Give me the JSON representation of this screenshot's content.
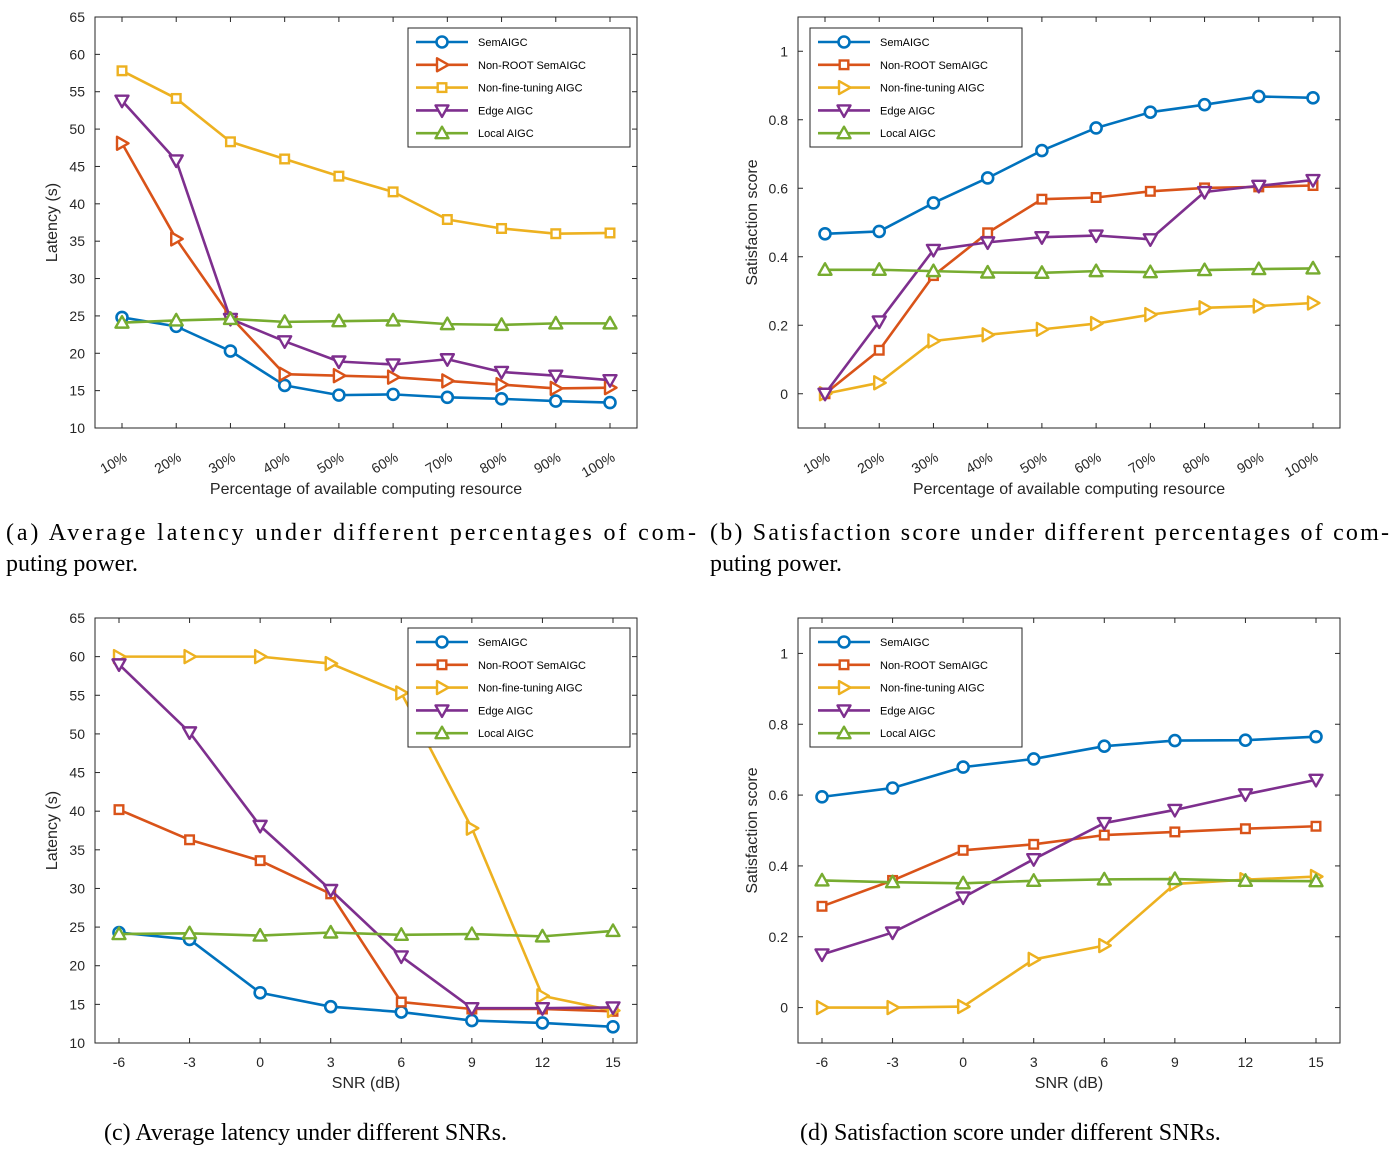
{
  "figure": {
    "captions": [
      {
        "lines": [
          "(a) Average latency under different percentages of com-",
          "puting power."
        ]
      },
      {
        "lines": [
          "(b) Satisfaction score under different percentages of com-",
          "puting power."
        ]
      },
      {
        "lines": [
          "(c) Average latency under different SNRs."
        ]
      },
      {
        "lines": [
          "(d) Satisfaction score under different SNRs."
        ]
      }
    ]
  },
  "colors": {
    "SemAIGC": "#0072BD",
    "Non-ROOT SemAIGC": "#D95319",
    "Non-fine-tuning AIGC": "#EDB120",
    "Edge AIGC": "#7E2F8E",
    "Local AIGC": "#77AC30"
  },
  "chart_data": [
    {
      "type": "line",
      "title": "",
      "xlabel": "Percentage of available computing resource",
      "ylabel": "Latency (s)",
      "categories": [
        "10%",
        "20%",
        "30%",
        "40%",
        "50%",
        "60%",
        "70%",
        "80%",
        "90%",
        "100%"
      ],
      "ylim": [
        10,
        65
      ],
      "yticks": [
        10,
        15,
        20,
        25,
        30,
        35,
        40,
        45,
        50,
        55,
        60,
        65
      ],
      "grid": false,
      "legend_position": "top-right",
      "series": [
        {
          "name": "SemAIGC",
          "marker": "circle",
          "values": [
            24.8,
            23.6,
            20.3,
            15.7,
            14.4,
            14.5,
            14.1,
            13.9,
            13.6,
            13.4
          ]
        },
        {
          "name": "Non-ROOT SemAIGC",
          "marker": "triangle-right",
          "values": [
            48.1,
            35.3,
            24.9,
            17.2,
            17.0,
            16.8,
            16.3,
            15.8,
            15.3,
            15.4
          ]
        },
        {
          "name": "Non-fine-tuning AIGC",
          "marker": "square",
          "values": [
            57.8,
            54.1,
            48.3,
            46.0,
            43.7,
            41.6,
            37.9,
            36.7,
            36.0,
            36.1
          ]
        },
        {
          "name": "Edge AIGC",
          "marker": "triangle-down",
          "values": [
            53.8,
            45.8,
            24.6,
            21.6,
            18.9,
            18.5,
            19.2,
            17.5,
            17.0,
            16.4
          ]
        },
        {
          "name": "Local AIGC",
          "marker": "triangle-up",
          "values": [
            24.1,
            24.4,
            24.6,
            24.2,
            24.3,
            24.4,
            23.9,
            23.8,
            24.0,
            24.0
          ]
        }
      ]
    },
    {
      "type": "line",
      "title": "",
      "xlabel": "Percentage of available computing resource",
      "ylabel": "Satisfaction score",
      "categories": [
        "10%",
        "20%",
        "30%",
        "40%",
        "50%",
        "60%",
        "70%",
        "80%",
        "90%",
        "100%"
      ],
      "ylim": [
        -0.1,
        1.1
      ],
      "yticks": [
        0,
        0.2,
        0.4,
        0.6,
        0.8,
        1
      ],
      "grid": false,
      "legend_position": "top-left",
      "series": [
        {
          "name": "SemAIGC",
          "marker": "circle",
          "values": [
            0.467,
            0.474,
            0.557,
            0.63,
            0.71,
            0.776,
            0.822,
            0.844,
            0.868,
            0.864
          ]
        },
        {
          "name": "Non-ROOT SemAIGC",
          "marker": "square",
          "values": [
            0.0,
            0.127,
            0.345,
            0.47,
            0.568,
            0.573,
            0.591,
            0.601,
            0.604,
            0.608
          ]
        },
        {
          "name": "Non-fine-tuning AIGC",
          "marker": "triangle-right",
          "values": [
            0.0,
            0.032,
            0.154,
            0.172,
            0.188,
            0.205,
            0.231,
            0.251,
            0.256,
            0.265
          ]
        },
        {
          "name": "Edge AIGC",
          "marker": "triangle-down",
          "values": [
            0.0,
            0.211,
            0.42,
            0.442,
            0.457,
            0.462,
            0.451,
            0.589,
            0.607,
            0.624
          ]
        },
        {
          "name": "Local AIGC",
          "marker": "triangle-up",
          "values": [
            0.362,
            0.362,
            0.358,
            0.354,
            0.353,
            0.358,
            0.355,
            0.361,
            0.364,
            0.366
          ]
        }
      ]
    },
    {
      "type": "line",
      "title": "",
      "xlabel": "SNR (dB)",
      "ylabel": "Latency (s)",
      "categories": [
        "-6",
        "-3",
        "0",
        "3",
        "6",
        "9",
        "12",
        "15"
      ],
      "ylim": [
        10,
        65
      ],
      "yticks": [
        10,
        15,
        20,
        25,
        30,
        35,
        40,
        45,
        50,
        55,
        60,
        65
      ],
      "grid": false,
      "legend_position": "top-right",
      "series": [
        {
          "name": "SemAIGC",
          "marker": "circle",
          "values": [
            24.3,
            23.4,
            16.5,
            14.7,
            14.0,
            12.9,
            12.6,
            12.1
          ]
        },
        {
          "name": "Non-ROOT SemAIGC",
          "marker": "square",
          "values": [
            40.2,
            36.3,
            33.6,
            29.3,
            15.3,
            14.4,
            14.4,
            14.1
          ]
        },
        {
          "name": "Non-fine-tuning AIGC",
          "marker": "triangle-right",
          "values": [
            60.0,
            60.0,
            60.0,
            59.1,
            55.3,
            37.8,
            16.1,
            14.2
          ]
        },
        {
          "name": "Edge AIGC",
          "marker": "triangle-down",
          "values": [
            59.0,
            50.2,
            38.1,
            29.8,
            21.2,
            14.5,
            14.5,
            14.6
          ]
        },
        {
          "name": "Local AIGC",
          "marker": "triangle-up",
          "values": [
            24.1,
            24.2,
            23.9,
            24.3,
            24.0,
            24.1,
            23.8,
            24.5
          ]
        }
      ]
    },
    {
      "type": "line",
      "title": "",
      "xlabel": "SNR (dB)",
      "ylabel": "Satisfaction score",
      "categories": [
        "-6",
        "-3",
        "0",
        "3",
        "6",
        "9",
        "12",
        "15"
      ],
      "ylim": [
        -0.1,
        1.1
      ],
      "yticks": [
        0,
        0.2,
        0.4,
        0.6,
        0.8,
        1
      ],
      "grid": false,
      "legend_position": "top-left",
      "series": [
        {
          "name": "SemAIGC",
          "marker": "circle",
          "values": [
            0.595,
            0.62,
            0.679,
            0.702,
            0.738,
            0.754,
            0.755,
            0.765
          ]
        },
        {
          "name": "Non-ROOT SemAIGC",
          "marker": "square",
          "values": [
            0.286,
            0.359,
            0.444,
            0.461,
            0.487,
            0.496,
            0.505,
            0.512
          ]
        },
        {
          "name": "Non-fine-tuning AIGC",
          "marker": "triangle-right",
          "values": [
            0.0,
            0.0,
            0.003,
            0.136,
            0.175,
            0.349,
            0.361,
            0.37
          ]
        },
        {
          "name": "Edge AIGC",
          "marker": "triangle-down",
          "values": [
            0.15,
            0.212,
            0.311,
            0.419,
            0.521,
            0.558,
            0.602,
            0.643
          ]
        },
        {
          "name": "Local AIGC",
          "marker": "triangle-up",
          "values": [
            0.359,
            0.354,
            0.351,
            0.358,
            0.362,
            0.363,
            0.358,
            0.357
          ]
        }
      ]
    }
  ]
}
